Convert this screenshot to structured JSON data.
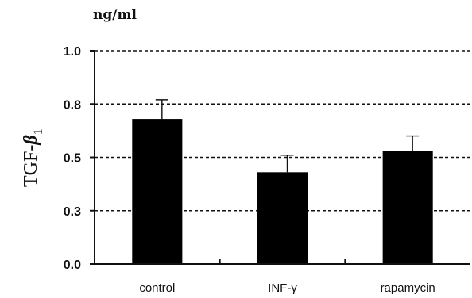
{
  "chart_data": {
    "type": "bar",
    "unit_label": "ng/ml",
    "ylabel_main": "TGF-",
    "ylabel_symbol": "β",
    "ylabel_subscript": "1",
    "ylim": [
      0,
      1.0
    ],
    "yticks": [
      0.0,
      0.25,
      0.5,
      0.75,
      1.0
    ],
    "ytick_labels": [
      "0.0",
      "0.3",
      "0.5",
      "0.8",
      "1.0"
    ],
    "grid": true,
    "categories": [
      "control",
      "INF-γ",
      "rapamycin"
    ],
    "values": [
      0.68,
      0.43,
      0.53
    ],
    "errors": [
      0.09,
      0.08,
      0.07
    ]
  }
}
